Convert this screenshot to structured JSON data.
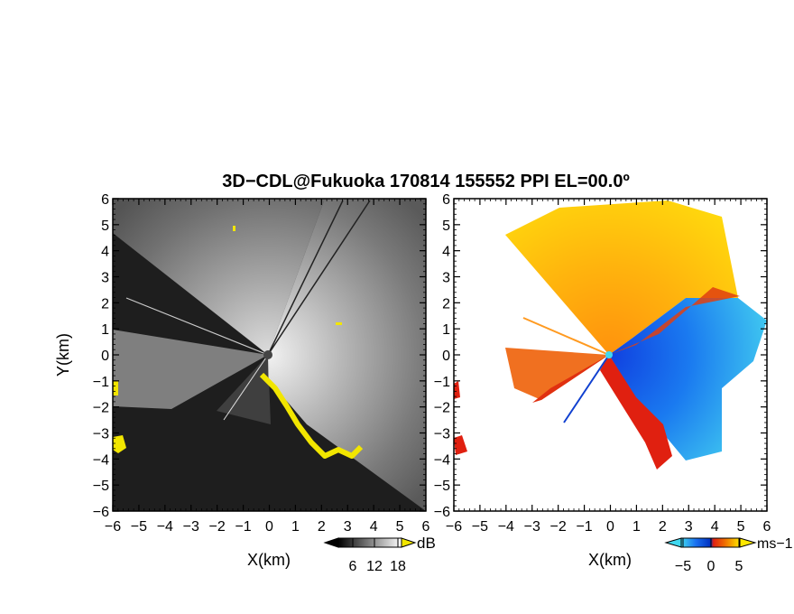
{
  "figure": {
    "title": "3D−CDL@Fukuoka 170814 155552 PPI EL=00.0º"
  },
  "chart_data": [
    {
      "type": "heatmap",
      "panel": "left",
      "quantity": "signal strength (grayscale)",
      "xlabel": "X(km)",
      "ylabel": "Y(km)",
      "xlim": [
        -6,
        6
      ],
      "ylim": [
        -6,
        6
      ],
      "x_ticks": [
        "−6",
        "−5",
        "−4",
        "−3",
        "−2",
        "−1",
        "0",
        "1",
        "2",
        "3",
        "4",
        "5",
        "6"
      ],
      "y_ticks": [
        "6",
        "5",
        "4",
        "3",
        "2",
        "1",
        "0",
        "−1",
        "−2",
        "−3",
        "−4",
        "−5",
        "−6"
      ],
      "colorbar": {
        "unit": "dB",
        "ticks": [
          "6",
          "12",
          "18"
        ],
        "colors": [
          "#000000",
          "#ffffff"
        ],
        "overlay_color": "#f2e600"
      }
    },
    {
      "type": "heatmap",
      "panel": "right",
      "quantity": "doppler velocity",
      "xlabel": "X(km)",
      "ylabel": "",
      "xlim": [
        -6,
        6
      ],
      "ylim": [
        -6,
        6
      ],
      "x_ticks": [
        "−6",
        "−5",
        "−4",
        "−3",
        "−2",
        "−1",
        "0",
        "1",
        "2",
        "3",
        "4",
        "5",
        "6"
      ],
      "y_ticks": [
        "6",
        "5",
        "4",
        "3",
        "2",
        "1",
        "0",
        "−1",
        "−2",
        "−3",
        "−4",
        "−5",
        "−6"
      ],
      "colorbar": {
        "unit": "ms−1",
        "ticks": [
          "−5",
          "0",
          "5"
        ],
        "colors": [
          "#38d6f0",
          "#0050e0",
          "#e02010",
          "#f0a000",
          "#ffe000"
        ]
      }
    }
  ]
}
